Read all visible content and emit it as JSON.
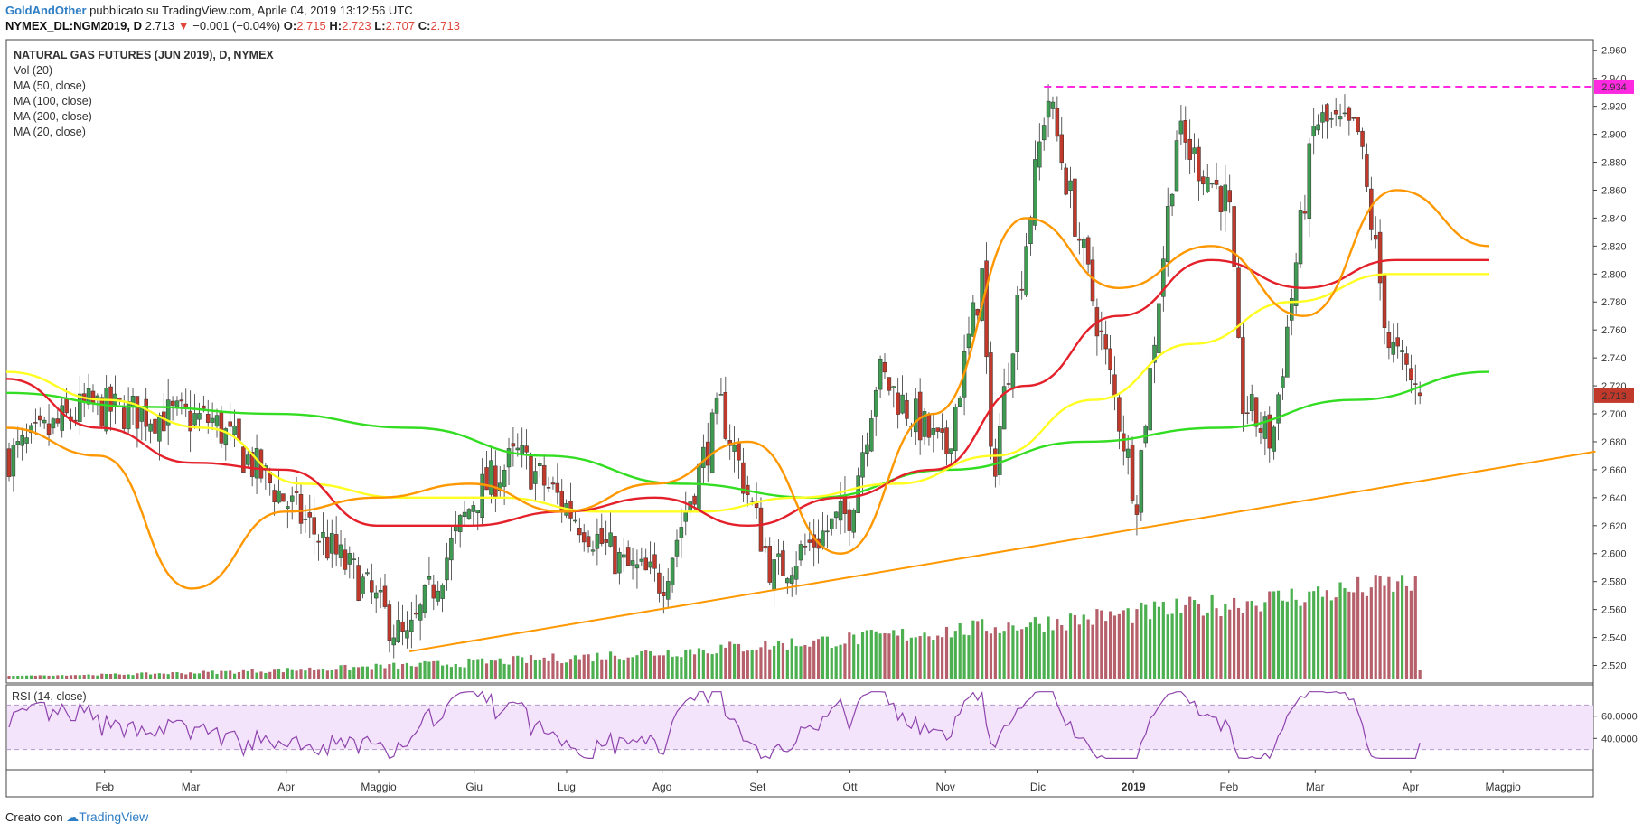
{
  "header": {
    "author": "GoldAndOther",
    "published_text": "pubblicato su TradingView.com, Aprile 04, 2019 13:12:56 UTC",
    "symbol": "NYMEX_DL:NGM2019, D",
    "last": "2.713",
    "change_arrow": "▼",
    "change": "−0.001 (−0.04%)",
    "o_label": "O:",
    "o_val": "2.715",
    "h_label": "H:",
    "h_val": "2.723",
    "l_label": "L:",
    "l_val": "2.707",
    "c_label": "C:",
    "c_val": "2.713"
  },
  "legend": {
    "title": "NATURAL GAS FUTURES (JUN 2019), D, NYMEX",
    "items": [
      "Vol (20)",
      "MA (50, close)",
      "MA (100, close)",
      "MA (200, close)",
      "MA (20, close)"
    ]
  },
  "rsi_label": "RSI (14, close)",
  "footer": {
    "created_with": "Creato con",
    "brand": "TradingView"
  },
  "colors": {
    "up": "#3f9a52",
    "down": "#c0392b",
    "vol_up": "#4caf50",
    "vol_down": "#b5606a",
    "ma20": "#ff9800",
    "ma50": "#e4202a",
    "ma100": "#ffff22",
    "ma200": "#33dd22",
    "resistance": "#ff2ae0",
    "trendline": "#ff9800",
    "rsi_line": "#8e44ad",
    "rsi_band": "#f3e3fb"
  },
  "chart_data": {
    "type": "candlestick",
    "y_axis": {
      "min": 2.51,
      "max": 2.965,
      "ticks": [
        "2.960",
        "2.940",
        "2.920",
        "2.900",
        "2.880",
        "2.860",
        "2.840",
        "2.820",
        "2.800",
        "2.780",
        "2.760",
        "2.740",
        "2.720",
        "2.700",
        "2.680",
        "2.660",
        "2.640",
        "2.620",
        "2.600",
        "2.580",
        "2.560",
        "2.540",
        "2.520"
      ]
    },
    "x_axis": {
      "labels": [
        "Feb",
        "Mar",
        "Apr",
        "Maggio",
        "Giu",
        "Lug",
        "Ago",
        "Set",
        "Ott",
        "Nov",
        "Dic",
        "2019",
        "Feb",
        "Mar",
        "Apr",
        "Maggio"
      ],
      "bold_labels": [
        "2019"
      ]
    },
    "price_labels": {
      "resistance": "2.934",
      "last": "2.713"
    },
    "key_points": [
      {
        "date": "2018-01-02",
        "close": 2.67
      },
      {
        "date": "2018-01-26",
        "close": 2.705
      },
      {
        "date": "2018-03-08",
        "close": 2.695
      },
      {
        "date": "2018-04-25",
        "close": 2.58
      },
      {
        "date": "2018-05-10",
        "close": 2.535
      },
      {
        "date": "2018-06-01",
        "close": 2.64
      },
      {
        "date": "2018-06-15",
        "close": 2.67
      },
      {
        "date": "2018-07-20",
        "close": 2.59
      },
      {
        "date": "2018-08-01",
        "close": 2.58
      },
      {
        "date": "2018-08-20",
        "close": 2.705
      },
      {
        "date": "2018-09-06",
        "close": 2.585
      },
      {
        "date": "2018-10-01",
        "close": 2.63
      },
      {
        "date": "2018-10-10",
        "close": 2.73
      },
      {
        "date": "2018-11-01",
        "close": 2.67
      },
      {
        "date": "2018-11-13",
        "close": 2.8
      },
      {
        "date": "2018-11-16",
        "close": 2.65
      },
      {
        "date": "2018-12-04",
        "close": 2.93
      },
      {
        "date": "2018-12-20",
        "close": 2.77
      },
      {
        "date": "2019-01-02",
        "close": 2.64
      },
      {
        "date": "2019-01-15",
        "close": 2.9
      },
      {
        "date": "2019-02-01",
        "close": 2.85
      },
      {
        "date": "2019-02-05",
        "close": 2.71
      },
      {
        "date": "2019-02-15",
        "close": 2.68
      },
      {
        "date": "2019-03-01",
        "close": 2.91
      },
      {
        "date": "2019-03-15",
        "close": 2.9
      },
      {
        "date": "2019-03-25",
        "close": 2.75
      },
      {
        "date": "2019-04-04",
        "close": 2.713
      }
    ],
    "ma20": [
      2.69,
      2.67,
      2.575,
      2.63,
      2.64,
      2.65,
      2.63,
      2.65,
      2.68,
      2.6,
      2.7,
      2.84,
      2.79,
      2.82,
      2.77,
      2.86,
      2.82
    ],
    "ma50": [
      2.725,
      2.69,
      2.665,
      2.66,
      2.62,
      2.62,
      2.63,
      2.64,
      2.62,
      2.64,
      2.66,
      2.72,
      2.77,
      2.81,
      2.79,
      2.81,
      2.81
    ],
    "ma100": [
      2.73,
      2.71,
      2.69,
      2.65,
      2.64,
      2.64,
      2.63,
      2.63,
      2.64,
      2.65,
      2.67,
      2.71,
      2.75,
      2.78,
      2.8,
      2.8
    ],
    "ma200": [
      2.715,
      2.705,
      2.7,
      2.69,
      2.67,
      2.65,
      2.64,
      2.66,
      2.68,
      2.69,
      2.71,
      2.73
    ],
    "resistance_level": 2.934,
    "trendline": [
      {
        "date": "2018-05-11",
        "value": 2.53
      },
      {
        "date": "2019-05-31",
        "value": 2.673
      }
    ],
    "rsi": {
      "band": [
        30,
        70
      ],
      "ticks": [
        "60.0000",
        "40.0000"
      ],
      "last": 36
    }
  }
}
